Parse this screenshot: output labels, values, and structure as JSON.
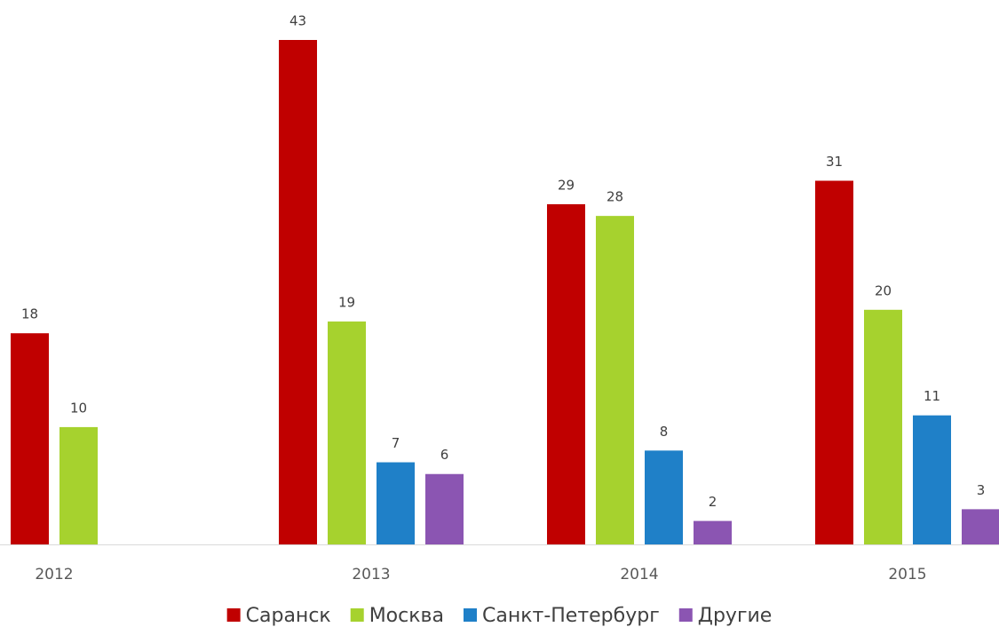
{
  "chart_data": {
    "type": "bar",
    "categories": [
      "2012",
      "2013",
      "2014",
      "2015"
    ],
    "series": [
      {
        "name": "Саранск",
        "color": "#c00000",
        "values": [
          18,
          43,
          29,
          31
        ]
      },
      {
        "name": "Москва",
        "color": "#a6d22e",
        "values": [
          10,
          19,
          28,
          20
        ]
      },
      {
        "name": "Санкт-Петербург",
        "color": "#1f80c8",
        "values": [
          null,
          7,
          8,
          11
        ]
      },
      {
        "name": "Другие",
        "color": "#8b55b2",
        "values": [
          null,
          6,
          2,
          3
        ]
      }
    ],
    "legend": "bottom"
  }
}
